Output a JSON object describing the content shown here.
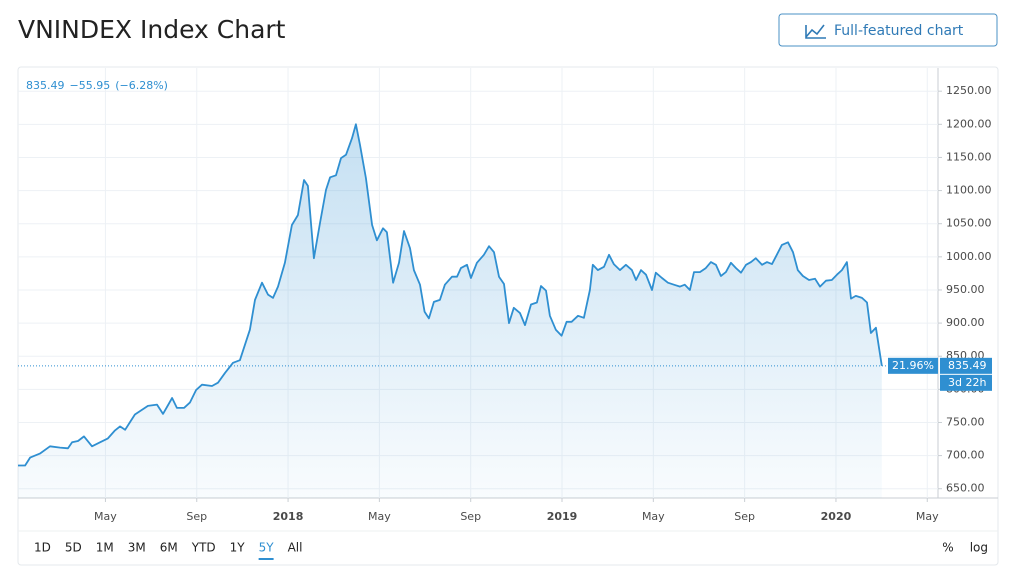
{
  "header": {
    "title": "VNINDEX Index Chart",
    "button": "Full-featured chart"
  },
  "chart_data": {
    "type": "area",
    "legend": {
      "change": "−55.95",
      "change_pct": "(−6.28%)"
    },
    "x": [
      0.17,
      0.48,
      0.7,
      1.13,
      1.57,
      2.01,
      2.36,
      2.54,
      2.8,
      3.06,
      3.41,
      3.76,
      4.11,
      4.42,
      4.64,
      4.86,
      5.29,
      5.86,
      6.26,
      6.52,
      6.92,
      7.13,
      7.44,
      7.7,
      7.97,
      8.23,
      8.67,
      8.93,
      9.24,
      9.59,
      9.89,
      10.33,
      10.55,
      10.86,
      11.12,
      11.34,
      11.56,
      11.86,
      12.17,
      12.43,
      12.7,
      12.87,
      13.13,
      13.4,
      13.66,
      13.84,
      14.1,
      14.32,
      14.54,
      14.8,
      14.97,
      15.15,
      15.41,
      15.68,
      15.89,
      16.16,
      16.33,
      16.6,
      16.86,
      17.08,
      17.34,
      17.51,
      17.78,
      17.98,
      18.17,
      18.39,
      18.65,
      18.87,
      19.18,
      19.4,
      19.57,
      19.84,
      20.01,
      20.27,
      20.58,
      20.8,
      21.02,
      21.24,
      21.46,
      21.68,
      21.89,
      22.16,
      22.38,
      22.64,
      22.9,
      23.08,
      23.3,
      23.47,
      23.73,
      23.98,
      24.2,
      24.42,
      24.7,
      24.96,
      25.22,
      25.35,
      25.57,
      25.84,
      26.06,
      26.27,
      26.54,
      26.8,
      27.06,
      27.24,
      27.46,
      27.68,
      27.94,
      28.11,
      28.38,
      28.64,
      28.9,
      29.17,
      29.38,
      29.6,
      29.78,
      30.04,
      30.3,
      30.52,
      30.74,
      30.96,
      31.18,
      31.4,
      31.62,
      31.84,
      32.06,
      32.28,
      32.49,
      32.76,
      32.98,
      33.2,
      33.41,
      33.63,
      33.9,
      34.12,
      34.33,
      34.55,
      34.82,
      35.08,
      35.3,
      35.56,
      35.82,
      36.04,
      36.26,
      36.48,
      36.66,
      36.87,
      37.14,
      37.36,
      37.53,
      37.75,
      38.01
    ],
    "values": [
      685,
      685,
      697,
      703,
      714,
      712,
      711,
      720,
      722,
      729,
      714,
      720,
      726,
      738,
      744,
      739,
      762,
      775,
      777,
      763,
      787,
      772,
      772,
      780,
      799,
      807,
      805,
      810,
      825,
      840,
      844,
      890,
      935,
      961,
      943,
      938,
      955,
      991,
      1048,
      1063,
      1116,
      1107,
      998,
      1051,
      1101,
      1120,
      1123,
      1149,
      1154,
      1179,
      1200,
      1169,
      1119,
      1048,
      1025,
      1043,
      1037,
      961,
      991,
      1039,
      1013,
      980,
      958,
      917,
      907,
      932,
      935,
      958,
      970,
      970,
      983,
      988,
      968,
      991,
      1003,
      1016,
      1007,
      970,
      959,
      900,
      923,
      915,
      897,
      928,
      931,
      956,
      949,
      911,
      890,
      881,
      902,
      902,
      911,
      908,
      950,
      988,
      980,
      985,
      1003,
      989,
      980,
      988,
      980,
      965,
      980,
      973,
      950,
      976,
      968,
      961,
      958,
      955,
      958,
      950,
      977,
      977,
      983,
      992,
      988,
      971,
      977,
      991,
      983,
      976,
      988,
      992,
      998,
      988,
      992,
      989,
      1003,
      1018,
      1022,
      1007,
      980,
      971,
      965,
      967,
      955,
      964,
      965,
      973,
      980,
      992,
      937,
      941,
      938,
      931,
      885,
      893,
      835.49
    ],
    "color": "#2f8fd1",
    "xlim": [
      0.17,
      40.47
    ],
    "xticks": [
      {
        "value": 4,
        "label": "May"
      },
      {
        "value": 8,
        "label": "Sep"
      },
      {
        "value": 12,
        "label": "2018"
      },
      {
        "value": 16,
        "label": "May"
      },
      {
        "value": 20,
        "label": "Sep"
      },
      {
        "value": 24,
        "label": "2019"
      },
      {
        "value": 28,
        "label": "May"
      },
      {
        "value": 32,
        "label": "Sep"
      },
      {
        "value": 36,
        "label": "2020"
      },
      {
        "value": 40,
        "label": "May"
      }
    ],
    "ylim": [
      636,
      1285
    ],
    "yticks": [
      {
        "value": 650,
        "label": "650.00"
      },
      {
        "value": 700,
        "label": "700.00"
      },
      {
        "value": 750,
        "label": "750.00"
      },
      {
        "value": 800,
        "label": "800.00"
      },
      {
        "value": 850,
        "label": "850.00"
      },
      {
        "value": 900,
        "label": "900.00"
      },
      {
        "value": 950,
        "label": "950.00"
      },
      {
        "value": 1000,
        "label": "1000.00"
      },
      {
        "value": 1050,
        "label": "1050.00"
      },
      {
        "value": 1100,
        "label": "1100.00"
      },
      {
        "value": 1150,
        "label": "1150.00"
      },
      {
        "value": 1200,
        "label": "1200.00"
      },
      {
        "value": 1250,
        "label": "1250.00"
      }
    ],
    "grid": true,
    "price_label": {
      "percent": "21.96%",
      "countdown": "3d 22h"
    }
  },
  "toolbar": {
    "ranges": [
      "1D",
      "5D",
      "1M",
      "3M",
      "6M",
      "YTD",
      "1Y",
      "5Y",
      "All"
    ],
    "active_range": "5Y",
    "scale_options": [
      "%",
      "log"
    ]
  }
}
